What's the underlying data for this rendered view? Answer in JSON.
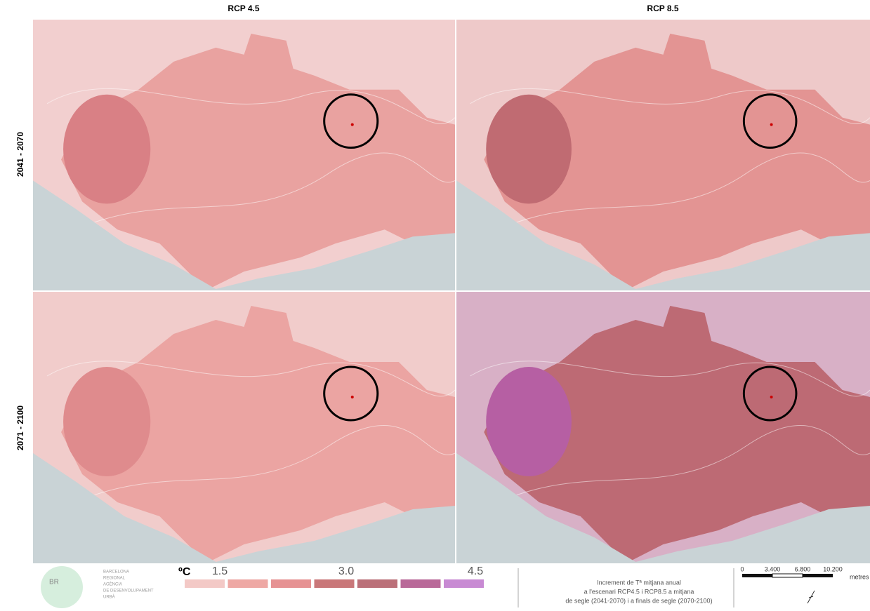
{
  "columns": [
    "RCP 4.5",
    "RCP 8.5"
  ],
  "rows": [
    "2041 - 2070",
    "2071 - 2100"
  ],
  "logo": {
    "mark": "BR",
    "lines": [
      "BARCELONA",
      "REGIONAL",
      "AGÈNCIA",
      "DE DESENVOLUPAMENT",
      "URBÀ"
    ]
  },
  "legend": {
    "unit": "ºC",
    "labels": [
      "1.5",
      "3.0",
      "4.5"
    ],
    "colors": [
      "#f3c9c6",
      "#eea8a4",
      "#e69293",
      "#c97779",
      "#bb7079",
      "#b96999",
      "#c88ad3"
    ]
  },
  "description": [
    "Increment de Tª mitjana anual",
    "a l'escenari RCP4.5 i RCP8.5 a mitjana",
    "de segle (2041-2070) i a finals de segle (2070-2100)"
  ],
  "scale_bar": {
    "labels": [
      "0",
      "3.400",
      "6.800",
      "10.200"
    ],
    "unit": "metres"
  }
}
